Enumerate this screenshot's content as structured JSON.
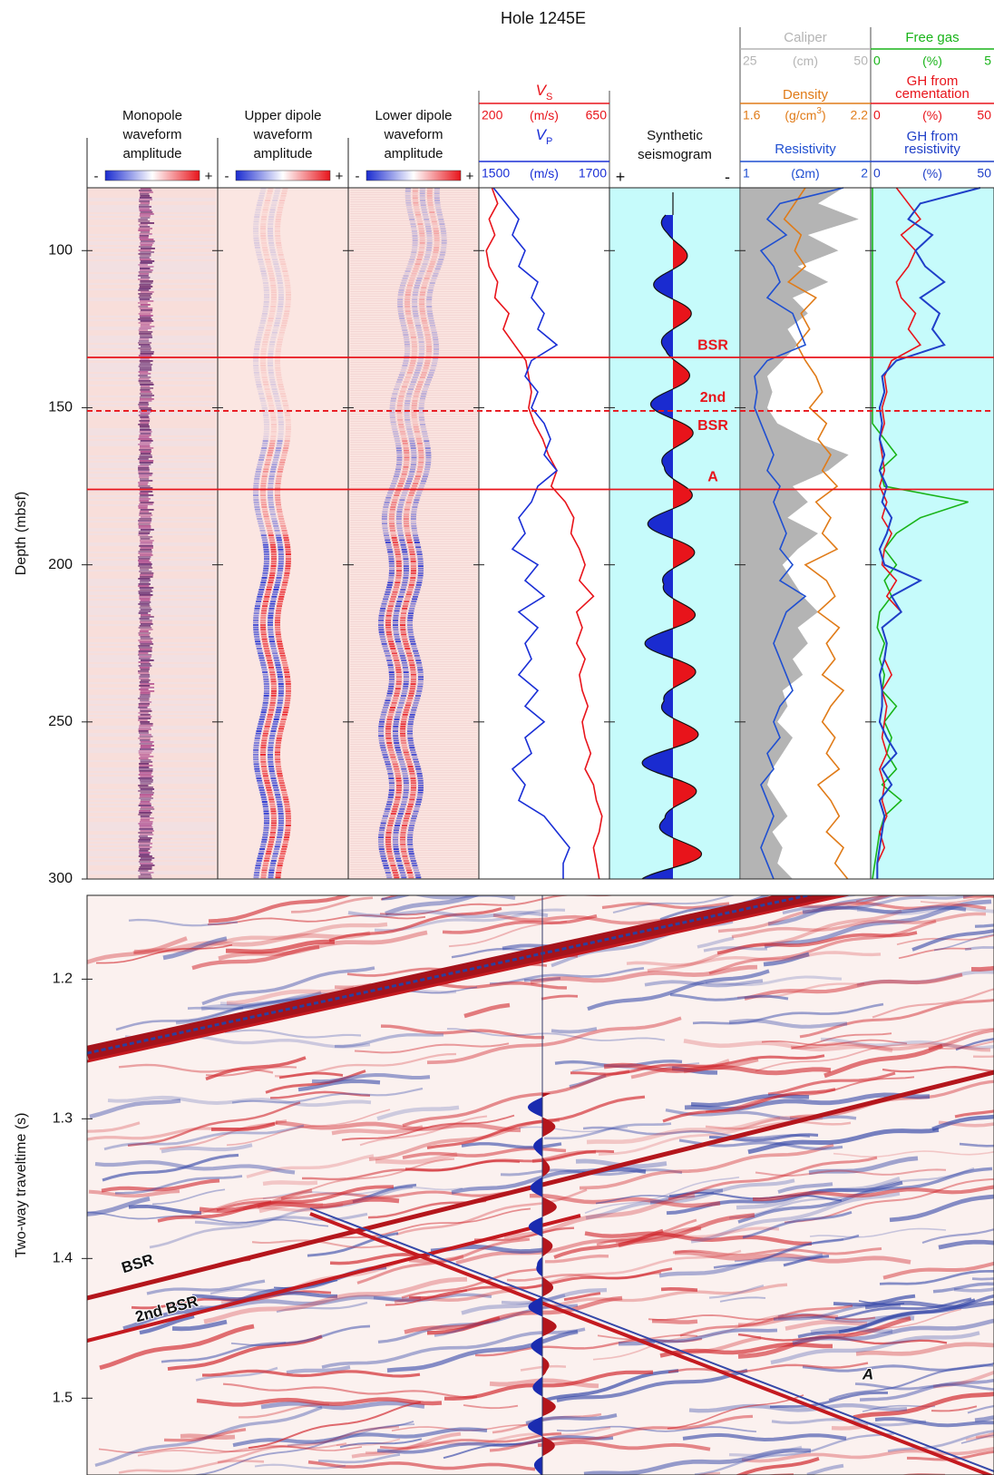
{
  "title": "Hole 1245E",
  "depth_axis": {
    "label": "Depth (mbsf)",
    "lim": [
      80,
      300
    ],
    "ticks": [
      100,
      150,
      200,
      250,
      300
    ]
  },
  "depth": [
    80,
    85,
    90,
    95,
    100,
    105,
    110,
    115,
    120,
    125,
    130,
    135,
    140,
    145,
    150,
    155,
    160,
    165,
    170,
    175,
    180,
    185,
    190,
    195,
    200,
    205,
    210,
    215,
    220,
    225,
    230,
    235,
    240,
    245,
    250,
    255,
    260,
    265,
    270,
    275,
    280,
    285,
    290,
    295,
    300
  ],
  "waveforms": [
    {
      "label": [
        "Monopole",
        "waveform",
        "amplitude"
      ],
      "minus": "-",
      "plus": "+"
    },
    {
      "label": [
        "Upper dipole",
        "waveform",
        "amplitude"
      ],
      "minus": "-",
      "plus": "+"
    },
    {
      "label": [
        "Lower dipole",
        "waveform",
        "amplitude"
      ],
      "minus": "-",
      "plus": "+"
    }
  ],
  "vs": {
    "symbol": "V",
    "sub": "S",
    "lim": [
      200,
      650
    ],
    "unit": "(m/s)",
    "color": "#e8141b",
    "values": [
      240,
      260,
      230,
      250,
      220,
      230,
      260,
      250,
      300,
      280,
      320,
      360,
      370,
      380,
      370,
      390,
      420,
      440,
      470,
      450,
      500,
      530,
      520,
      550,
      570,
      550,
      600,
      540,
      560,
      540,
      570,
      550,
      560,
      580,
      560,
      570,
      590,
      570,
      600,
      610,
      630,
      620,
      600,
      610,
      620
    ]
  },
  "vp": {
    "symbol": "V",
    "sub": "P",
    "lim": [
      1500,
      1700
    ],
    "unit": "(m/s)",
    "color": "#1a2fd6",
    "values": [
      1520,
      1540,
      1560,
      1550,
      1570,
      1560,
      1590,
      1580,
      1600,
      1590,
      1620,
      1580,
      1570,
      1590,
      1580,
      1600,
      1610,
      1600,
      1620,
      1590,
      1580,
      1560,
      1570,
      1550,
      1590,
      1570,
      1600,
      1560,
      1590,
      1570,
      1580,
      1560,
      1590,
      1570,
      1600,
      1570,
      1580,
      1550,
      1570,
      1560,
      1600,
      1620,
      1640,
      1630,
      1630
    ]
  },
  "synthetic": {
    "label": [
      "Synthetic",
      "seismogram"
    ],
    "plus": "+",
    "minus": "-"
  },
  "caliper": {
    "title": "Caliper",
    "lim": [
      25,
      50
    ],
    "unit": "(cm)",
    "color": "#b4b4b4",
    "values": [
      45,
      40,
      48,
      38,
      44,
      36,
      42,
      35,
      38,
      34,
      36,
      33,
      30,
      31,
      30,
      32,
      38,
      46,
      42,
      35,
      38,
      34,
      40,
      36,
      33,
      35,
      37,
      40,
      36,
      38,
      35,
      37,
      33,
      34,
      32,
      35,
      33,
      31,
      30,
      32,
      34,
      31,
      33,
      32,
      35
    ]
  },
  "density": {
    "title": "Density",
    "lim": [
      1.6,
      2.2
    ],
    "unit": "(g/cm",
    "unit_sup": "3",
    "unit_end": ")",
    "color": "#e07b18",
    "values": [
      1.9,
      1.85,
      1.8,
      1.88,
      1.85,
      1.9,
      1.82,
      1.95,
      1.88,
      1.92,
      1.86,
      1.9,
      1.95,
      1.98,
      1.92,
      2.0,
      1.96,
      2.02,
      1.98,
      2.05,
      1.95,
      2.02,
      1.98,
      2.05,
      1.9,
      2.0,
      2.04,
      1.96,
      2.06,
      2.0,
      2.04,
      1.98,
      2.08,
      2.02,
      1.98,
      2.04,
      2.0,
      2.06,
      1.96,
      2.02,
      2.06,
      2.0,
      2.08,
      2.04,
      2.1
    ]
  },
  "resistivity": {
    "title": "Resistivity",
    "lim": [
      1,
      2
    ],
    "unit": "(Ωm)",
    "color": "#1f4fd1",
    "values": [
      1.8,
      1.3,
      1.2,
      1.35,
      1.15,
      1.25,
      1.3,
      1.2,
      1.4,
      1.45,
      1.5,
      1.2,
      1.1,
      1.12,
      1.1,
      1.15,
      1.2,
      1.25,
      1.2,
      1.3,
      1.25,
      1.3,
      1.35,
      1.3,
      1.4,
      1.3,
      1.5,
      1.35,
      1.3,
      1.25,
      1.3,
      1.35,
      1.4,
      1.3,
      1.25,
      1.3,
      1.2,
      1.25,
      1.15,
      1.2,
      1.25,
      1.2,
      1.15,
      1.2,
      1.25
    ]
  },
  "free_gas": {
    "title": [
      "Free gas"
    ],
    "lim": [
      0,
      5
    ],
    "unit": "(%)",
    "color": "#19b419",
    "values": [
      0,
      0,
      0,
      0,
      0,
      0,
      0,
      0,
      0,
      0,
      0,
      0,
      0,
      0,
      0,
      0,
      0.5,
      1,
      0.3,
      0.5,
      4,
      2,
      1,
      0.5,
      1,
      0.5,
      0.8,
      0.3,
      0.2,
      0.5,
      0.3,
      0.5,
      0.4,
      1,
      0.5,
      0.8,
      0.6,
      1,
      0.4,
      1.2,
      0.5,
      0.3,
      0.2,
      0.1,
      0
    ]
  },
  "gh_cementation": {
    "title": [
      "GH from",
      "cementation"
    ],
    "lim": [
      0,
      50
    ],
    "unit": "(%)",
    "color": "#e8141b",
    "values": [
      10,
      15,
      20,
      12,
      18,
      15,
      10,
      12,
      18,
      15,
      20,
      8,
      5,
      6,
      4,
      5,
      3,
      4,
      5,
      3,
      6,
      4,
      8,
      5,
      4,
      10,
      6,
      12,
      4,
      6,
      5,
      8,
      4,
      6,
      5,
      4,
      6,
      3,
      5,
      4,
      6,
      3,
      5,
      2,
      2
    ]
  },
  "gh_resistivity": {
    "title": [
      "GH from",
      "resistivity"
    ],
    "lim": [
      0,
      50
    ],
    "unit": "(%)",
    "color": "#1f3fc8",
    "values": [
      45,
      20,
      15,
      25,
      18,
      22,
      30,
      20,
      28,
      25,
      30,
      10,
      4,
      5,
      3,
      4,
      3,
      5,
      3,
      6,
      4,
      8,
      6,
      3,
      5,
      20,
      8,
      12,
      4,
      6,
      5,
      3,
      4,
      4,
      3,
      6,
      10,
      4,
      8,
      3,
      5,
      4,
      3,
      2,
      2
    ]
  },
  "horizons": [
    {
      "depth": 134,
      "label": [
        "BSR"
      ],
      "style": "solid"
    },
    {
      "depth": 151,
      "label": [
        "2nd",
        "BSR"
      ],
      "style": "dashed"
    },
    {
      "depth": 176,
      "label": [
        "A"
      ],
      "style": "solid"
    }
  ],
  "seismic": {
    "axis": {
      "label": "Two-way traveltime (s)",
      "lim": [
        1.14,
        1.555
      ],
      "ticks": [
        1.2,
        1.3,
        1.4,
        1.5
      ]
    },
    "labels": [
      "BSR",
      "2nd BSR",
      "A"
    ]
  }
}
